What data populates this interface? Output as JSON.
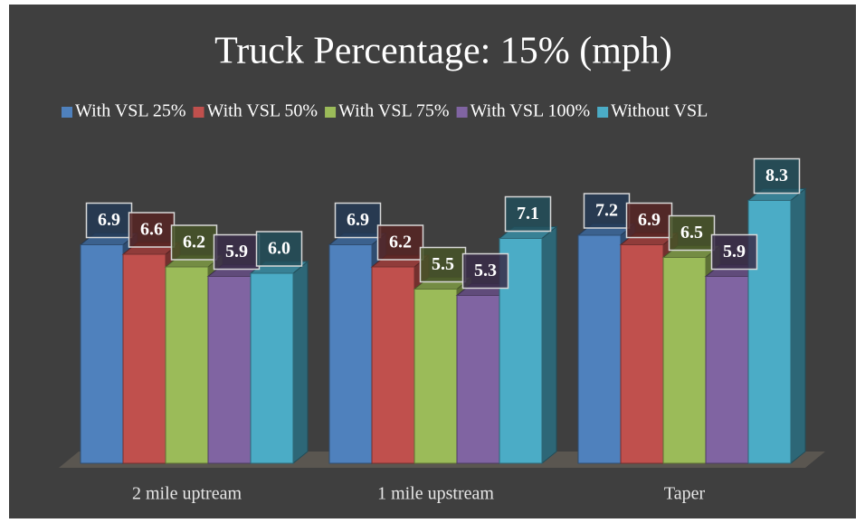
{
  "chart_data": {
    "type": "bar3d",
    "title": "Truck Percentage: 15% (mph)",
    "categories": [
      "2 mile uptream",
      "1 mile upstream",
      "Taper"
    ],
    "series": [
      {
        "name": "With VSL 25%",
        "color": "#4f81bd",
        "values": [
          6.9,
          6.9,
          7.2
        ],
        "value_labels": [
          "6.9",
          "6.9",
          "7.2"
        ]
      },
      {
        "name": "With VSL 50%",
        "color": "#c0504d",
        "values": [
          6.6,
          6.2,
          6.9
        ],
        "value_labels": [
          "6.6",
          "6.2",
          "6.9"
        ]
      },
      {
        "name": "With VSL 75%",
        "color": "#9bbb59",
        "values": [
          6.2,
          5.5,
          6.5
        ],
        "value_labels": [
          "6.2",
          "5.5",
          "6.5"
        ]
      },
      {
        "name": "With VSL 100%",
        "color": "#8064a2",
        "values": [
          5.9,
          5.3,
          5.9
        ],
        "value_labels": [
          "5.9",
          "5.3",
          "5.9"
        ]
      },
      {
        "name": "Without VSL",
        "color": "#4bacc6",
        "values": [
          6.0,
          7.1,
          8.3
        ],
        "value_labels": [
          "6.0",
          "7.1",
          "8.3"
        ]
      }
    ],
    "legend": "top"
  }
}
